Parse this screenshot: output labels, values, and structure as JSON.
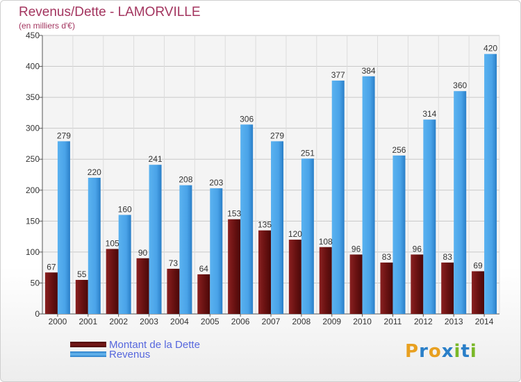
{
  "header": {
    "title": "Revenus/Dette - LAMORVILLE",
    "subtitle": "(en milliers d'€)"
  },
  "legend": {
    "items": [
      {
        "label": "Montant de la Dette",
        "color": "#7a1a1a"
      },
      {
        "label": "Revenus",
        "color": "#4aa3e8"
      }
    ]
  },
  "logo": {
    "text": "Proxiti"
  },
  "colors": {
    "title": "#a3355f",
    "debt": "#7a1a1a",
    "revenue": "#4aa3e8",
    "grid": "#c8c8c8"
  },
  "chart_data": {
    "type": "bar",
    "title": "Revenus/Dette - LAMORVILLE",
    "subtitle": "(en milliers d'€)",
    "categories": [
      "2000",
      "2001",
      "2002",
      "2003",
      "2004",
      "2005",
      "2006",
      "2007",
      "2008",
      "2009",
      "2010",
      "2011",
      "2012",
      "2013",
      "2014"
    ],
    "series": [
      {
        "name": "Montant de la Dette",
        "values": [
          67,
          55,
          105,
          90,
          73,
          64,
          153,
          135,
          120,
          108,
          96,
          83,
          96,
          83,
          69
        ]
      },
      {
        "name": "Revenus",
        "values": [
          279,
          220,
          160,
          241,
          208,
          203,
          306,
          279,
          251,
          377,
          384,
          256,
          314,
          360,
          420
        ]
      }
    ],
    "ylim": [
      0,
      450
    ],
    "yticks": [
      0,
      50,
      100,
      150,
      200,
      250,
      300,
      350,
      400,
      450
    ],
    "grid": true,
    "legend_position": "bottom-left"
  }
}
